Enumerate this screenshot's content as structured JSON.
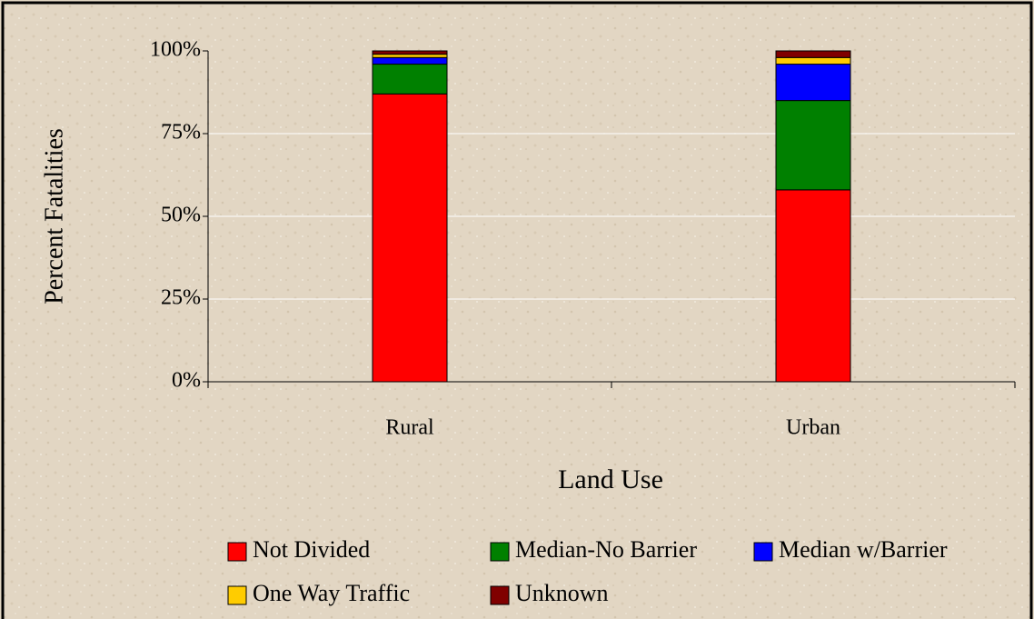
{
  "chart_data": {
    "type": "stacked_bar",
    "x_label": "Land Use",
    "y_label": "Percent Fatalities",
    "categories": [
      "Rural",
      "Urban"
    ],
    "series": [
      {
        "name": "Not Divided",
        "color": "#ff0000",
        "values": [
          87,
          58
        ]
      },
      {
        "name": "Median-No Barrier",
        "color": "#008000",
        "values": [
          9,
          27
        ]
      },
      {
        "name": "Median w/Barrier",
        "color": "#0000ff",
        "values": [
          2,
          11
        ]
      },
      {
        "name": "One Way Traffic",
        "color": "#ffcc00",
        "values": [
          1,
          2
        ]
      },
      {
        "name": "Unknown",
        "color": "#800000",
        "values": [
          1,
          2
        ]
      }
    ],
    "ylim": [
      0,
      100
    ],
    "yticks": [
      {
        "value": 0,
        "label": "0%"
      },
      {
        "value": 25,
        "label": "25%"
      },
      {
        "value": 50,
        "label": "50%"
      },
      {
        "value": 75,
        "label": "75%"
      },
      {
        "value": 100,
        "label": "100%"
      }
    ],
    "grid": true,
    "legend": "bottom"
  }
}
